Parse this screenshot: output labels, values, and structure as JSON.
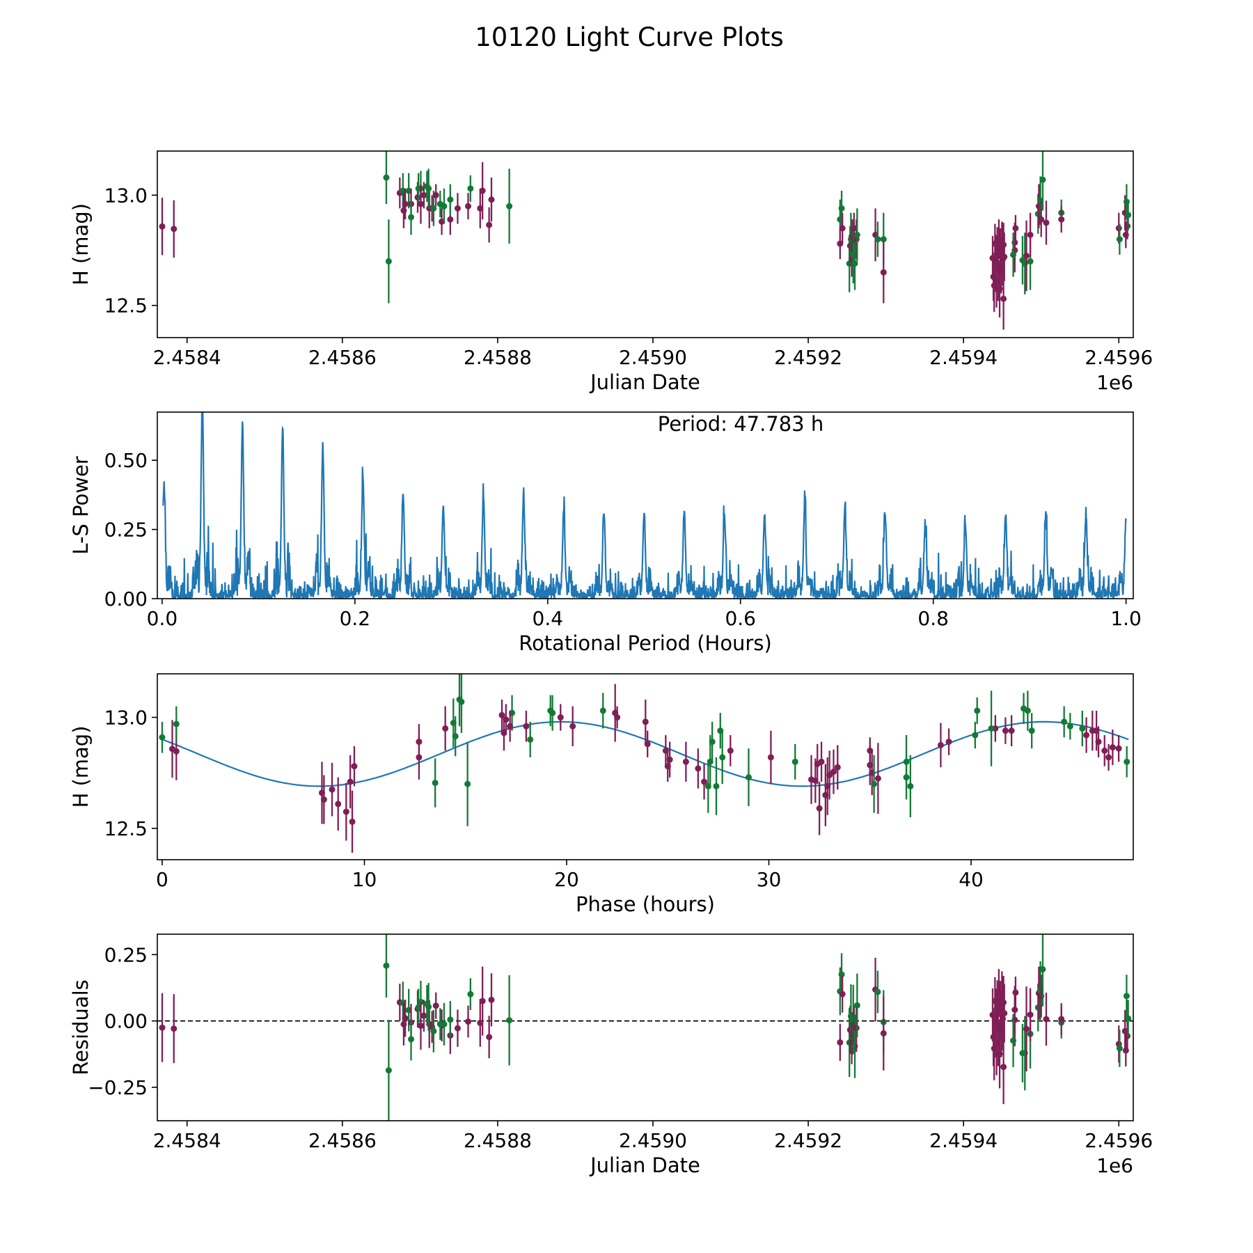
{
  "title": "10120 Light Curve Plots",
  "colors": {
    "band_0": "#7f1f56",
    "band_1": "#137a36",
    "model": "#1f77b4",
    "periodogram": "#1f77b4"
  },
  "chart_data": [
    {
      "id": "lightcurve",
      "type": "scatter",
      "xlabel": "Julian Date",
      "ylabel": "H (mag)",
      "offset_label": "1e6",
      "xlim": [
        2458361.7,
        2459618.6
      ],
      "ylim": [
        12.354,
        13.2
      ],
      "xticks": [
        2458400,
        2458600,
        2458800,
        2459000,
        2459200,
        2459400,
        2459600
      ],
      "xtick_labels": [
        "2.4584",
        "2.4586",
        "2.4588",
        "2.4590",
        "2.4592",
        "2.4594",
        "2.4596"
      ],
      "yticks": [
        12.5,
        13.0
      ],
      "ytick_labels": [
        "12.5",
        "13.0"
      ],
      "series": "points"
    },
    {
      "id": "periodogram",
      "type": "line",
      "xlabel": "Rotational Period (Hours)",
      "ylabel": "L-S Power",
      "annotation": "Period: 47.783 h",
      "xlim": [
        -0.005,
        1.0075
      ],
      "ylim": [
        0,
        0.674
      ],
      "xticks": [
        0,
        0.2,
        0.4,
        0.6,
        0.8,
        1.0
      ],
      "xtick_labels": [
        "0.0",
        "0.2",
        "0.4",
        "0.6",
        "0.8",
        "1.0"
      ],
      "yticks": [
        0,
        0.25,
        0.5
      ],
      "ytick_labels": [
        "0.00",
        "0.25",
        "0.50"
      ],
      "peak_spacing": 0.041667,
      "peaks": [
        0.4,
        0.7,
        0.62,
        0.6,
        0.54,
        0.43,
        0.37,
        0.33,
        0.36,
        0.36,
        0.31,
        0.3,
        0.3,
        0.31,
        0.29,
        0.29,
        0.33,
        0.3,
        0.3,
        0.26,
        0.25,
        0.29,
        0.29,
        0.29,
        0.28
      ],
      "noise_level": 0.03
    },
    {
      "id": "phased",
      "type": "scatter",
      "xlabel": "Phase (hours)",
      "ylabel": "H (mag)",
      "xlim": [
        -0.24,
        48.02
      ],
      "ylim": [
        12.359,
        13.196
      ],
      "xticks": [
        0,
        10,
        20,
        30,
        40
      ],
      "xtick_labels": [
        "0",
        "10",
        "20",
        "30",
        "40"
      ],
      "yticks": [
        12.5,
        13.0
      ],
      "ytick_labels": [
        "12.5",
        "13.0"
      ],
      "model": {
        "mean": 12.835,
        "amplitude": 0.145,
        "period_hours": 23.89,
        "t0_hours": 13.73,
        "span_hours": 47.783
      }
    },
    {
      "id": "residuals",
      "type": "scatter",
      "xlabel": "Julian Date",
      "ylabel": "Residuals",
      "offset_label": "1e6",
      "xlim": [
        2458361.7,
        2459618.6
      ],
      "ylim": [
        -0.376,
        0.327
      ],
      "xticks": [
        2458400,
        2458600,
        2458800,
        2459000,
        2459200,
        2459400,
        2459600
      ],
      "xtick_labels": [
        "2.4584",
        "2.4586",
        "2.4588",
        "2.4590",
        "2.4592",
        "2.4594",
        "2.4596"
      ],
      "yticks": [
        -0.25,
        0,
        0.25
      ],
      "ytick_labels": [
        "−0.25",
        "0.00",
        "0.25"
      ],
      "zero_line": true
    }
  ],
  "points": {
    "fields": [
      "jd",
      "mag",
      "err",
      "band",
      "phase_hours"
    ],
    "rows": [
      [
        2458368.0,
        12.858,
        0.13,
        0,
        0.5
      ],
      [
        2458383.0,
        12.847,
        0.13,
        0,
        0.7
      ],
      [
        2458656.6,
        13.08,
        0.12,
        1,
        14.7
      ],
      [
        2458659.7,
        12.7,
        0.19,
        1,
        15.1
      ],
      [
        2458674.0,
        13.01,
        0.07,
        0,
        16.8
      ],
      [
        2458678.0,
        13.02,
        0.08,
        1,
        17.3
      ],
      [
        2458679.0,
        12.93,
        0.08,
        0,
        16.9
      ],
      [
        2458681.0,
        12.96,
        0.07,
        0,
        17.2
      ],
      [
        2458685.5,
        13.02,
        0.08,
        1,
        19.3
      ],
      [
        2458688.5,
        12.96,
        0.07,
        0,
        18.0
      ],
      [
        2458688.5,
        12.9,
        0.08,
        1,
        18.2
      ],
      [
        2458697.0,
        12.99,
        0.07,
        0,
        17.0
      ],
      [
        2458698.0,
        13.03,
        0.07,
        1,
        19.2
      ],
      [
        2458701.0,
        13.03,
        0.08,
        1,
        21.8
      ],
      [
        2458701.0,
        12.96,
        0.09,
        0,
        20.3
      ],
      [
        2458705.0,
        13.0,
        0.06,
        0,
        19.7
      ],
      [
        2458709.0,
        13.04,
        0.07,
        1,
        42.6
      ],
      [
        2458712.0,
        12.94,
        0.09,
        0,
        46.0
      ],
      [
        2458711.0,
        13.03,
        0.09,
        1,
        42.8
      ],
      [
        2458715.5,
        12.94,
        0.06,
        0,
        41.7
      ],
      [
        2458717.5,
        12.94,
        0.08,
        1,
        43.0
      ],
      [
        2458720.5,
        13.0,
        0.05,
        0,
        22.5
      ],
      [
        2458728.0,
        12.88,
        0.06,
        0,
        24.0
      ],
      [
        2458726.0,
        12.96,
        0.06,
        1,
        44.9
      ],
      [
        2458731.0,
        12.95,
        0.08,
        1,
        45.5
      ],
      [
        2458739.0,
        12.89,
        0.07,
        0,
        46.3
      ],
      [
        2458739.0,
        12.98,
        0.07,
        1,
        44.6
      ],
      [
        2458748.5,
        12.94,
        0.07,
        0,
        42.0
      ],
      [
        2458762.0,
        12.95,
        0.06,
        0,
        41.2
      ],
      [
        2458765.0,
        13.03,
        0.06,
        1,
        40.3
      ],
      [
        2458777.5,
        12.94,
        0.09,
        0,
        46.2
      ],
      [
        2458780.5,
        13.02,
        0.13,
        0,
        22.4
      ],
      [
        2458789.0,
        12.865,
        0.08,
        0,
        47.0
      ],
      [
        2458792.0,
        12.98,
        0.1,
        0,
        23.9
      ],
      [
        2458815.0,
        12.95,
        0.17,
        1,
        41.0
      ],
      [
        2459241.0,
        12.89,
        0.09,
        1,
        27.2
      ],
      [
        2459241.0,
        12.78,
        0.07,
        0,
        25.0
      ],
      [
        2459243.0,
        12.94,
        0.08,
        1,
        27.6
      ],
      [
        2459244.0,
        12.85,
        0.07,
        0,
        28.1
      ],
      [
        2459253.0,
        12.69,
        0.13,
        1,
        27.4
      ],
      [
        2459254.0,
        12.77,
        0.09,
        0,
        26.5
      ],
      [
        2459255.0,
        12.8,
        0.12,
        1,
        27.1
      ],
      [
        2459256.0,
        12.71,
        0.08,
        0,
        26.8
      ],
      [
        2459257.0,
        12.81,
        0.08,
        0,
        25.1
      ],
      [
        2459258.0,
        12.73,
        0.13,
        1,
        29.0
      ],
      [
        2459259.0,
        12.85,
        0.07,
        0,
        24.9
      ],
      [
        2459260.0,
        12.69,
        0.12,
        1,
        27.0
      ],
      [
        2459262.0,
        12.8,
        0.09,
        0,
        25.9
      ],
      [
        2459263.0,
        12.82,
        0.12,
        1,
        27.7
      ],
      [
        2459286.5,
        12.82,
        0.12,
        0,
        30.1
      ],
      [
        2459289.5,
        12.8,
        0.08,
        1,
        31.3
      ],
      [
        2459297.0,
        12.8,
        0.12,
        1,
        36.8
      ],
      [
        2459297.0,
        12.65,
        0.14,
        0,
        32.8
      ],
      [
        2459437.5,
        12.715,
        0.1,
        0,
        32.3
      ],
      [
        2459438.5,
        12.63,
        0.11,
        0,
        8.0
      ],
      [
        2459439.5,
        12.59,
        0.12,
        0,
        32.5
      ],
      [
        2459440.5,
        12.78,
        0.09,
        0,
        9.5
      ],
      [
        2459441.5,
        12.69,
        0.13,
        0,
        32.9
      ],
      [
        2459442.5,
        12.61,
        0.12,
        0,
        8.7
      ],
      [
        2459443.5,
        12.755,
        0.1,
        0,
        33.2
      ],
      [
        2459444.5,
        12.66,
        0.14,
        0,
        7.9
      ],
      [
        2459445.5,
        12.8,
        0.09,
        0,
        32.6
      ],
      [
        2459446.5,
        12.575,
        0.13,
        0,
        9.1
      ],
      [
        2459447.5,
        12.74,
        0.11,
        0,
        33.0
      ],
      [
        2459448.5,
        12.675,
        0.12,
        0,
        8.4
      ],
      [
        2459449.5,
        12.79,
        0.09,
        0,
        32.4
      ],
      [
        2459450.5,
        12.71,
        0.12,
        0,
        9.3
      ],
      [
        2459451.5,
        12.775,
        0.1,
        0,
        33.4
      ],
      [
        2459451.5,
        12.53,
        0.14,
        0,
        9.4
      ],
      [
        2459452.5,
        12.72,
        0.11,
        0,
        32.1
      ],
      [
        2459466.0,
        12.785,
        0.09,
        0,
        35.0
      ],
      [
        2459466.0,
        12.75,
        0.1,
        0,
        35.1
      ],
      [
        2459464.0,
        12.73,
        0.1,
        1,
        36.8
      ],
      [
        2459467.0,
        12.85,
        0.06,
        0,
        35.0
      ],
      [
        2459476.0,
        12.705,
        0.11,
        1,
        13.5
      ],
      [
        2459479.0,
        12.69,
        0.14,
        1,
        37.0
      ],
      [
        2459481.0,
        12.725,
        0.16,
        0,
        35.4
      ],
      [
        2459486.0,
        12.7,
        0.13,
        1,
        35.2
      ],
      [
        2459486.0,
        12.82,
        0.1,
        0,
        12.7
      ],
      [
        2459496.0,
        12.915,
        0.09,
        1,
        14.5
      ],
      [
        2459497.0,
        12.95,
        0.1,
        0,
        14.0
      ],
      [
        2459499.0,
        12.975,
        0.11,
        1,
        14.4
      ],
      [
        2459500.0,
        12.89,
        0.08,
        0,
        12.7
      ],
      [
        2459502.0,
        13.07,
        0.14,
        1,
        14.8
      ],
      [
        2459506.5,
        12.875,
        0.1,
        0,
        38.5
      ],
      [
        2459526.0,
        12.92,
        0.06,
        1,
        40.2
      ],
      [
        2459526.0,
        12.89,
        0.06,
        0,
        38.9
      ],
      [
        2459600.0,
        12.85,
        0.07,
        0,
        46.6
      ],
      [
        2459601.0,
        12.8,
        0.07,
        1,
        47.7
      ],
      [
        2459608.0,
        12.92,
        0.08,
        0,
        45.7
      ],
      [
        2459609.0,
        12.82,
        0.06,
        0,
        46.8
      ],
      [
        2459610.0,
        12.97,
        0.08,
        1,
        0.7
      ],
      [
        2459611.0,
        12.86,
        0.06,
        0,
        47.3
      ],
      [
        2459612.0,
        12.91,
        0.07,
        1,
        0.0
      ]
    ]
  }
}
